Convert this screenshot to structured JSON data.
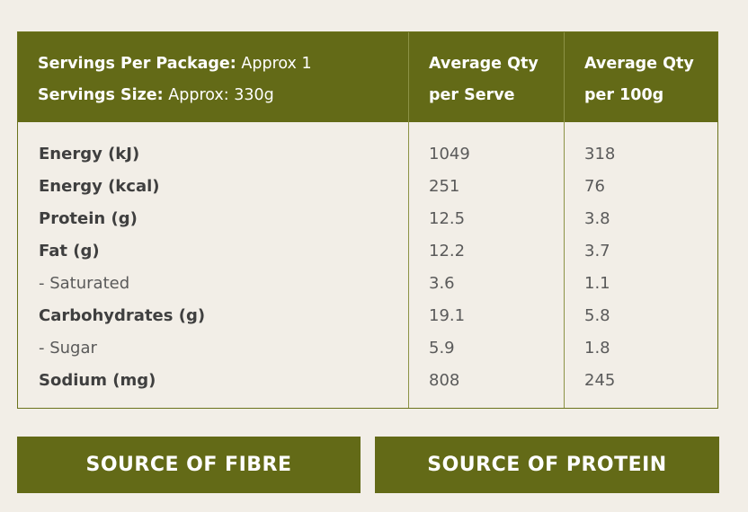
{
  "header": {
    "servings_per_package_label": "Servings Per Package:",
    "servings_per_package_value": "Approx 1",
    "serving_size_label": "Servings Size:",
    "serving_size_value": "Approx: 330g",
    "col_serve_line1": "Average Qty",
    "col_serve_line2": "per Serve",
    "col_100g_line1": "Average Qty",
    "col_100g_line2": "per 100g"
  },
  "rows": [
    {
      "label": "Energy (kJ)",
      "per_serve": "1049",
      "per_100g": "318"
    },
    {
      "label": "Energy (kcal)",
      "per_serve": "251",
      "per_100g": "76"
    },
    {
      "label": "Protein (g)",
      "per_serve": "12.5",
      "per_100g": "3.8"
    },
    {
      "label": "Fat (g)",
      "per_serve": "12.2",
      "per_100g": "3.7"
    },
    {
      "label": "- Saturated",
      "per_serve": "3.6",
      "per_100g": "1.1"
    },
    {
      "label": "Carbohydrates (g)",
      "per_serve": "19.1",
      "per_100g": "5.8"
    },
    {
      "label": "- Sugar",
      "per_serve": "5.9",
      "per_100g": "1.8"
    },
    {
      "label": "Sodium (mg)",
      "per_serve": "808",
      "per_100g": "245"
    }
  ],
  "claims": {
    "fibre": "SOURCE OF FIBRE",
    "protein": "SOURCE OF PROTEIN"
  },
  "colors": {
    "brand_olive": "#636a17",
    "background": "#f2eee7",
    "text": "#4a4a4a"
  }
}
